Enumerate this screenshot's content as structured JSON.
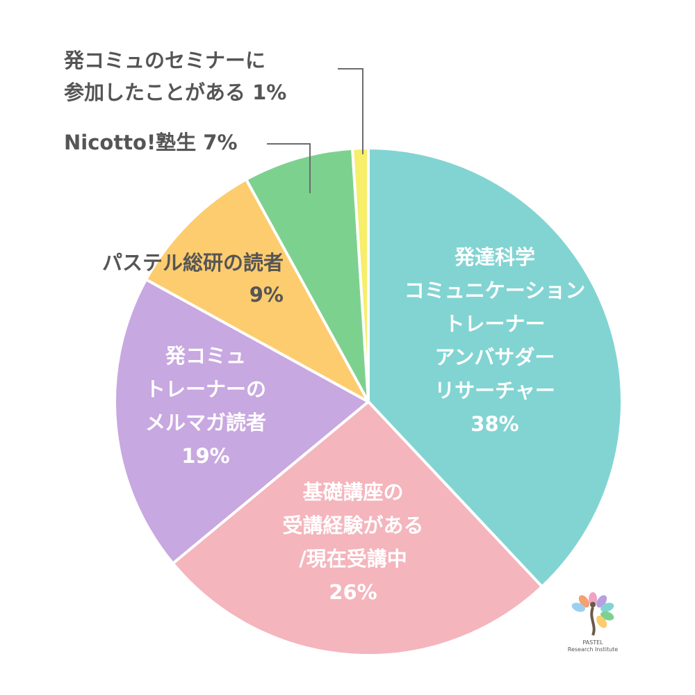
{
  "chart_data": {
    "type": "pie",
    "categories": [
      "発達科学コミュニケーショントレーナーアンバサダーリサーチャー",
      "基礎講座の受講経験がある/現在受講中",
      "発コミュトレーナーのメルマガ読者",
      "パステル総研の読者",
      "Nicotto!塾生",
      "発コミュのセミナーに参加したことがある"
    ],
    "values": [
      38,
      26,
      19,
      9,
      7,
      1
    ],
    "colors": [
      "#82d4d2",
      "#f4b5bc",
      "#c8a8e0",
      "#fdcc6e",
      "#7dd18f",
      "#f7ee6a"
    ],
    "labels": [
      {
        "lines": [
          "発達科学",
          "コミュニケーション",
          "トレーナー",
          "アンバサダー",
          "リサーチャー",
          "38%"
        ]
      },
      {
        "lines": [
          "基礎講座の",
          "受講経験がある",
          "/現在受講中",
          "26%"
        ]
      },
      {
        "lines": [
          "発コミュ",
          "トレーナーの",
          "メルマガ読者",
          "19%"
        ]
      },
      {
        "lines": [
          "パステル総研の読者",
          "9%"
        ]
      },
      {
        "lines": [
          "Nicotto!塾生 7%"
        ]
      },
      {
        "lines": [
          "発コミュのセミナーに",
          "参加したことがある 1%"
        ]
      }
    ]
  },
  "logo": {
    "name": "PASTEL",
    "subtitle": "Research Institute",
    "petal_colors": [
      "#f0a3c4",
      "#b5a0e0",
      "#82d4d2",
      "#7dd18f",
      "#fdcc6e",
      "#f4a070",
      "#9ad0ef"
    ]
  }
}
